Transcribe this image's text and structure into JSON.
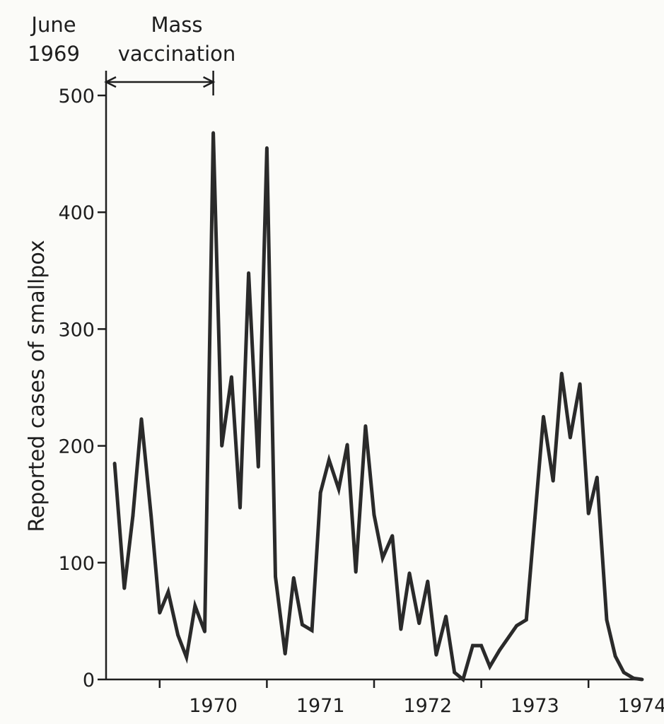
{
  "chart_data": {
    "type": "line",
    "title": "",
    "xlabel": "",
    "ylabel": "Reported cases of smallpox",
    "xlim": [
      1969.5,
      1974.5
    ],
    "ylim": [
      0,
      500
    ],
    "yticks": [
      0,
      100,
      200,
      300,
      400,
      500
    ],
    "xtick_labels": [
      "1970",
      "1971",
      "1972",
      "1973",
      "1974"
    ],
    "grid": false,
    "legend": "none",
    "series": [
      {
        "points": [
          [
            1969.58,
            185
          ],
          [
            1969.67,
            78
          ],
          [
            1969.75,
            140
          ],
          [
            1969.83,
            223
          ],
          [
            1969.92,
            140
          ],
          [
            1970.0,
            57
          ],
          [
            1970.08,
            75
          ],
          [
            1970.17,
            38
          ],
          [
            1970.25,
            19
          ],
          [
            1970.33,
            63
          ],
          [
            1970.42,
            41
          ],
          [
            1970.5,
            468
          ],
          [
            1970.58,
            200
          ],
          [
            1970.67,
            259
          ],
          [
            1970.75,
            147
          ],
          [
            1970.83,
            348
          ],
          [
            1970.92,
            182
          ],
          [
            1971.0,
            455
          ],
          [
            1971.08,
            88
          ],
          [
            1971.17,
            22
          ],
          [
            1971.25,
            87
          ],
          [
            1971.33,
            47
          ],
          [
            1971.42,
            42
          ],
          [
            1971.5,
            160
          ],
          [
            1971.58,
            188
          ],
          [
            1971.67,
            163
          ],
          [
            1971.75,
            201
          ],
          [
            1971.83,
            92
          ],
          [
            1971.92,
            217
          ],
          [
            1972.0,
            141
          ],
          [
            1972.08,
            104
          ],
          [
            1972.17,
            123
          ],
          [
            1972.25,
            43
          ],
          [
            1972.33,
            91
          ],
          [
            1972.42,
            48
          ],
          [
            1972.5,
            84
          ],
          [
            1972.58,
            21
          ],
          [
            1972.67,
            54
          ],
          [
            1972.75,
            6
          ],
          [
            1972.83,
            0
          ],
          [
            1972.92,
            29
          ],
          [
            1973.0,
            29
          ],
          [
            1973.08,
            11
          ],
          [
            1973.17,
            25
          ],
          [
            1973.33,
            46
          ],
          [
            1973.42,
            51
          ],
          [
            1973.5,
            138
          ],
          [
            1973.58,
            225
          ],
          [
            1973.67,
            170
          ],
          [
            1973.75,
            262
          ],
          [
            1973.83,
            207
          ],
          [
            1973.92,
            253
          ],
          [
            1974.0,
            142
          ],
          [
            1974.08,
            173
          ],
          [
            1974.17,
            51
          ],
          [
            1974.25,
            20
          ],
          [
            1974.33,
            6
          ],
          [
            1974.42,
            1
          ],
          [
            1974.5,
            0
          ]
        ]
      }
    ],
    "annotations": [
      {
        "line1": "June",
        "line2": "1969",
        "x": 1969.5
      },
      {
        "line1": "Mass",
        "line2": "vaccination",
        "x": 1970.5
      }
    ],
    "colors": {
      "line": "#2a2a2a",
      "axis": "#1e1e1e",
      "background": "#fbfbf8"
    }
  }
}
